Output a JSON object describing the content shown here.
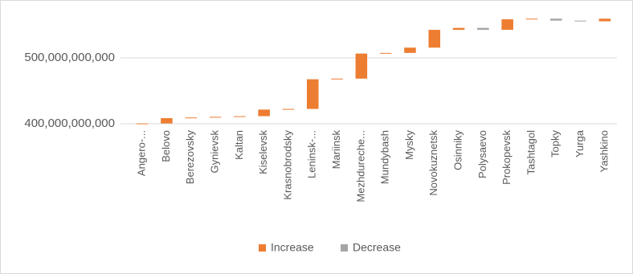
{
  "chart_data": {
    "type": "waterfall",
    "categories": [
      "Angero-...",
      "Belovo",
      "Berezovsky",
      "Gynievsk",
      "Kaltan",
      "Kiselevsk",
      "Krasnobrodsky",
      "Leninsk-...",
      "Mariinsk",
      "Mezhdureche...",
      "Mundybash",
      "Mysky",
      "Novokuznetsk",
      "Osinniky",
      "Polysaevo",
      "Prokopevsk",
      "Tashtagol",
      "Topky",
      "Yurga",
      "Yashkino"
    ],
    "series": [
      {
        "name": "Increase",
        "color": "#ed7d31",
        "values": [
          500000000,
          8000000000,
          1000000000,
          1000000000,
          1000000000,
          10000000000,
          1000000000,
          45000000000,
          1000000000,
          38000000000,
          1000000000,
          8000000000,
          27000000000,
          3000000000,
          null,
          16000000000,
          1000000000,
          null,
          null,
          4000000000
        ]
      },
      {
        "name": "Decrease",
        "color": "#a5a5a5",
        "values": [
          null,
          null,
          null,
          null,
          null,
          null,
          null,
          null,
          null,
          null,
          null,
          null,
          null,
          null,
          3000000000,
          null,
          null,
          3000000000,
          1000000000,
          null
        ]
      }
    ],
    "ylim": [
      400000000000,
      570000000000
    ],
    "yticks": [
      {
        "value": 400000000000,
        "label": "400,000,000,000"
      },
      {
        "value": 500000000000,
        "label": "500,000,000,000"
      }
    ],
    "grid": true
  }
}
